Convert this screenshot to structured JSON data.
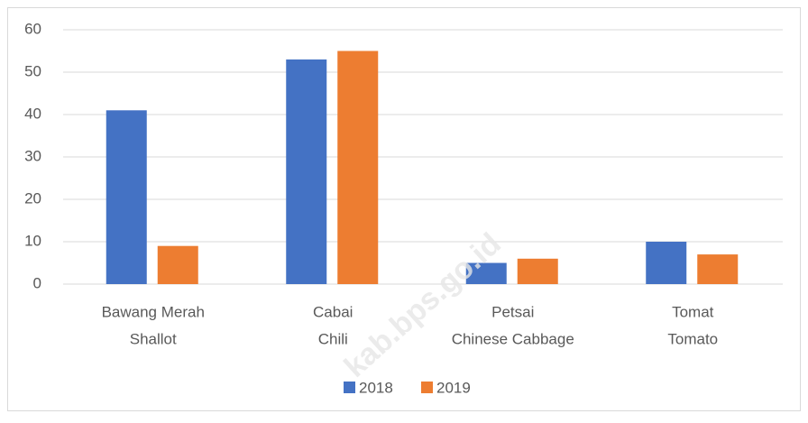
{
  "chart_data": {
    "type": "bar",
    "categories": [
      [
        "Bawang Merah",
        "Shallot"
      ],
      [
        "Cabai",
        "Chili"
      ],
      [
        "Petsai",
        "Chinese Cabbage"
      ],
      [
        "Tomat",
        "Tomato"
      ]
    ],
    "series": [
      {
        "name": "2018",
        "color": "#4472c4",
        "values": [
          41,
          53,
          5,
          10
        ]
      },
      {
        "name": "2019",
        "color": "#ed7d31",
        "values": [
          9,
          55,
          6,
          7
        ]
      }
    ],
    "ylim": [
      0,
      60
    ],
    "yticks": [
      0,
      10,
      20,
      30,
      40,
      50,
      60
    ],
    "grid": true,
    "legend": "bottom",
    "watermark": "kab.bps.go.id"
  }
}
